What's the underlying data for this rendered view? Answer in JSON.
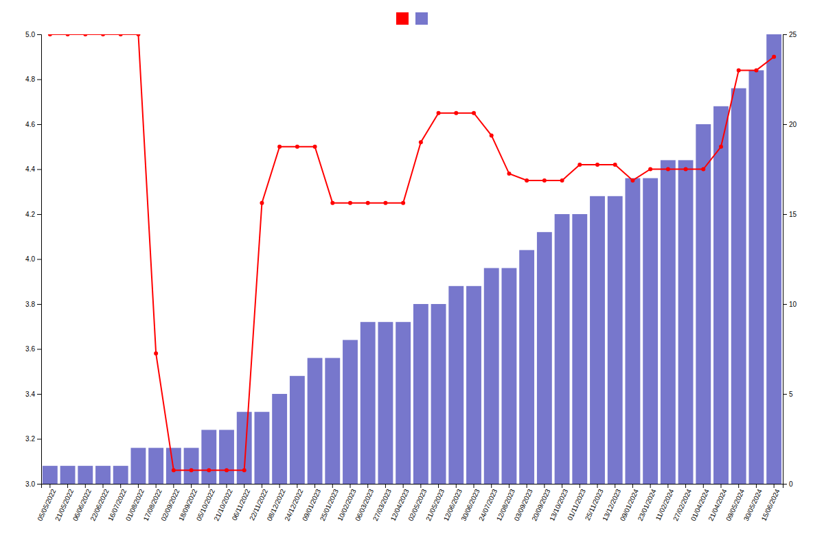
{
  "chart_data": {
    "type": "bar",
    "categories": [
      "05/05/2022",
      "21/05/2022",
      "06/06/2022",
      "22/06/2022",
      "16/07/2022",
      "01/08/2022",
      "17/08/2022",
      "02/09/2022",
      "18/09/2022",
      "05/10/2022",
      "21/10/2022",
      "06/11/2022",
      "22/11/2022",
      "08/12/2022",
      "24/12/2022",
      "09/01/2023",
      "25/01/2023",
      "10/02/2023",
      "06/03/2023",
      "27/03/2023",
      "12/04/2023",
      "02/05/2023",
      "21/05/2023",
      "12/06/2023",
      "30/06/2023",
      "24/07/2023",
      "12/08/2023",
      "03/09/2023",
      "20/09/2023",
      "13/10/2023",
      "01/11/2023",
      "25/11/2023",
      "13/12/2023",
      "09/01/2024",
      "23/01/2024",
      "11/02/2024",
      "27/02/2024",
      "01/04/2024",
      "21/04/2024",
      "09/05/2024",
      "30/05/2024",
      "15/06/2024"
    ],
    "series": [
      {
        "type": "bar",
        "axis": "y2",
        "color": "#7777cc",
        "values": [
          1,
          1,
          1,
          1,
          1,
          2,
          2,
          2,
          2,
          3,
          3,
          4,
          4,
          5,
          6,
          7,
          7,
          8,
          9,
          9,
          9,
          10,
          10,
          11,
          11,
          12,
          12,
          13,
          14,
          15,
          15,
          16,
          16,
          17,
          17,
          18,
          18,
          20,
          21,
          22,
          23,
          25
        ]
      },
      {
        "type": "line",
        "color": "#ff0000",
        "marker": "circle",
        "values": [
          5.0,
          5.0,
          5.0,
          5.0,
          5.0,
          5.0,
          3.58,
          3.06,
          3.06,
          3.06,
          3.06,
          3.06,
          4.25,
          4.5,
          4.5,
          4.5,
          4.25,
          4.25,
          4.25,
          4.25,
          4.25,
          4.52,
          4.65,
          4.65,
          4.65,
          4.55,
          4.38,
          4.35,
          4.35,
          4.35,
          4.42,
          4.42,
          4.42,
          4.35,
          4.4,
          4.4,
          4.4,
          4.4,
          4.5,
          4.84,
          4.84,
          4.9
        ]
      }
    ],
    "ylim": [
      3.0,
      5.0
    ],
    "yticks": [
      {
        "value": 3.0,
        "label": "3.0"
      },
      3.2,
      3.4,
      3.6,
      3.8,
      {
        "value": 4.0,
        "label": "4.0"
      },
      4.2,
      4.4,
      4.6,
      4.8,
      {
        "value": 5.0,
        "label": "5.0"
      }
    ],
    "y2lim": [
      0,
      25
    ],
    "y2ticks": [
      0,
      5,
      10,
      15,
      20,
      25
    ],
    "grid": false,
    "legend": "top"
  }
}
